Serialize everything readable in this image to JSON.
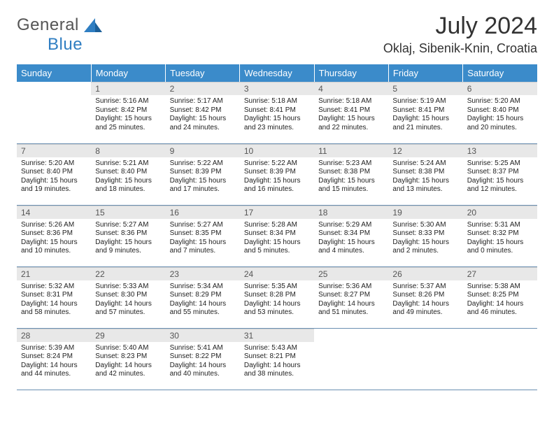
{
  "logo": {
    "textA": "General",
    "textB": "Blue"
  },
  "title": "July 2024",
  "location": "Oklaj, Sibenik-Knin, Croatia",
  "weekdays": [
    "Sunday",
    "Monday",
    "Tuesday",
    "Wednesday",
    "Thursday",
    "Friday",
    "Saturday"
  ],
  "colors": {
    "header_bg": "#3b8bca",
    "header_text": "#ffffff",
    "daynum_bg": "#e8e8e8",
    "border": "#6a8fb2",
    "logo_blue": "#2f7ec2"
  },
  "weeks": [
    [
      null,
      {
        "n": "1",
        "sr": "5:16 AM",
        "ss": "8:42 PM",
        "dl": "15 hours and 25 minutes."
      },
      {
        "n": "2",
        "sr": "5:17 AM",
        "ss": "8:42 PM",
        "dl": "15 hours and 24 minutes."
      },
      {
        "n": "3",
        "sr": "5:18 AM",
        "ss": "8:41 PM",
        "dl": "15 hours and 23 minutes."
      },
      {
        "n": "4",
        "sr": "5:18 AM",
        "ss": "8:41 PM",
        "dl": "15 hours and 22 minutes."
      },
      {
        "n": "5",
        "sr": "5:19 AM",
        "ss": "8:41 PM",
        "dl": "15 hours and 21 minutes."
      },
      {
        "n": "6",
        "sr": "5:20 AM",
        "ss": "8:40 PM",
        "dl": "15 hours and 20 minutes."
      }
    ],
    [
      {
        "n": "7",
        "sr": "5:20 AM",
        "ss": "8:40 PM",
        "dl": "15 hours and 19 minutes."
      },
      {
        "n": "8",
        "sr": "5:21 AM",
        "ss": "8:40 PM",
        "dl": "15 hours and 18 minutes."
      },
      {
        "n": "9",
        "sr": "5:22 AM",
        "ss": "8:39 PM",
        "dl": "15 hours and 17 minutes."
      },
      {
        "n": "10",
        "sr": "5:22 AM",
        "ss": "8:39 PM",
        "dl": "15 hours and 16 minutes."
      },
      {
        "n": "11",
        "sr": "5:23 AM",
        "ss": "8:38 PM",
        "dl": "15 hours and 15 minutes."
      },
      {
        "n": "12",
        "sr": "5:24 AM",
        "ss": "8:38 PM",
        "dl": "15 hours and 13 minutes."
      },
      {
        "n": "13",
        "sr": "5:25 AM",
        "ss": "8:37 PM",
        "dl": "15 hours and 12 minutes."
      }
    ],
    [
      {
        "n": "14",
        "sr": "5:26 AM",
        "ss": "8:36 PM",
        "dl": "15 hours and 10 minutes."
      },
      {
        "n": "15",
        "sr": "5:27 AM",
        "ss": "8:36 PM",
        "dl": "15 hours and 9 minutes."
      },
      {
        "n": "16",
        "sr": "5:27 AM",
        "ss": "8:35 PM",
        "dl": "15 hours and 7 minutes."
      },
      {
        "n": "17",
        "sr": "5:28 AM",
        "ss": "8:34 PM",
        "dl": "15 hours and 5 minutes."
      },
      {
        "n": "18",
        "sr": "5:29 AM",
        "ss": "8:34 PM",
        "dl": "15 hours and 4 minutes."
      },
      {
        "n": "19",
        "sr": "5:30 AM",
        "ss": "8:33 PM",
        "dl": "15 hours and 2 minutes."
      },
      {
        "n": "20",
        "sr": "5:31 AM",
        "ss": "8:32 PM",
        "dl": "15 hours and 0 minutes."
      }
    ],
    [
      {
        "n": "21",
        "sr": "5:32 AM",
        "ss": "8:31 PM",
        "dl": "14 hours and 58 minutes."
      },
      {
        "n": "22",
        "sr": "5:33 AM",
        "ss": "8:30 PM",
        "dl": "14 hours and 57 minutes."
      },
      {
        "n": "23",
        "sr": "5:34 AM",
        "ss": "8:29 PM",
        "dl": "14 hours and 55 minutes."
      },
      {
        "n": "24",
        "sr": "5:35 AM",
        "ss": "8:28 PM",
        "dl": "14 hours and 53 minutes."
      },
      {
        "n": "25",
        "sr": "5:36 AM",
        "ss": "8:27 PM",
        "dl": "14 hours and 51 minutes."
      },
      {
        "n": "26",
        "sr": "5:37 AM",
        "ss": "8:26 PM",
        "dl": "14 hours and 49 minutes."
      },
      {
        "n": "27",
        "sr": "5:38 AM",
        "ss": "8:25 PM",
        "dl": "14 hours and 46 minutes."
      }
    ],
    [
      {
        "n": "28",
        "sr": "5:39 AM",
        "ss": "8:24 PM",
        "dl": "14 hours and 44 minutes."
      },
      {
        "n": "29",
        "sr": "5:40 AM",
        "ss": "8:23 PM",
        "dl": "14 hours and 42 minutes."
      },
      {
        "n": "30",
        "sr": "5:41 AM",
        "ss": "8:22 PM",
        "dl": "14 hours and 40 minutes."
      },
      {
        "n": "31",
        "sr": "5:43 AM",
        "ss": "8:21 PM",
        "dl": "14 hours and 38 minutes."
      },
      null,
      null,
      null
    ]
  ],
  "labels": {
    "sunrise": "Sunrise: ",
    "sunset": "Sunset: ",
    "daylight": "Daylight: "
  }
}
